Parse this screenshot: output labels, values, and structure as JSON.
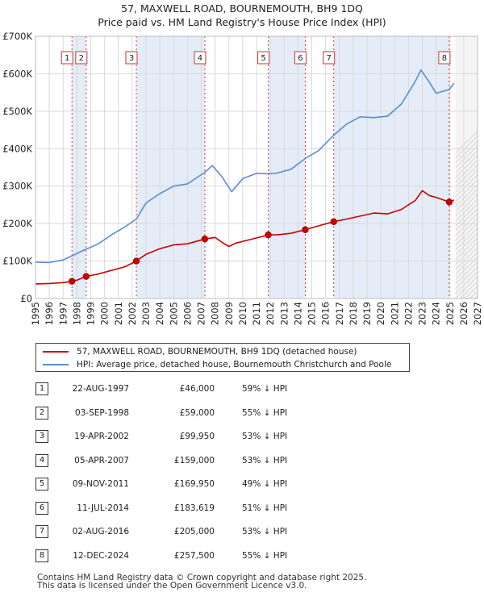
{
  "chart_data": {
    "type": "line",
    "title": "57, MAXWELL ROAD, BOURNEMOUTH, BH9 1DQ",
    "subtitle": "Price paid vs. HM Land Registry's House Price Index (HPI)",
    "xlabel": "",
    "ylabel": "",
    "xlim": [
      1995,
      2027
    ],
    "ylim": [
      0,
      700000
    ],
    "x_ticks": [
      "1995",
      "1996",
      "1997",
      "1998",
      "1999",
      "2000",
      "2001",
      "2002",
      "2003",
      "2004",
      "2005",
      "2006",
      "2007",
      "2008",
      "2009",
      "2010",
      "2011",
      "2012",
      "2013",
      "2014",
      "2015",
      "2016",
      "2017",
      "2018",
      "2019",
      "2020",
      "2021",
      "2022",
      "2023",
      "2024",
      "2025",
      "2026",
      "2027"
    ],
    "y_ticks": [
      {
        "value": 0,
        "label": "£0"
      },
      {
        "value": 100000,
        "label": "£100K"
      },
      {
        "value": 200000,
        "label": "£200K"
      },
      {
        "value": 300000,
        "label": "£300K"
      },
      {
        "value": 400000,
        "label": "£400K"
      },
      {
        "value": 500000,
        "label": "£500K"
      },
      {
        "value": 600000,
        "label": "£600K"
      },
      {
        "value": 700000,
        "label": "£700K"
      }
    ],
    "grid": true,
    "forecast_from": 2025.4,
    "series": [
      {
        "name": "57, MAXWELL ROAD, BOURNEMOUTH, BH9 1DQ (detached house)",
        "color": "#cc0000",
        "points": [
          [
            1995.0,
            39000
          ],
          [
            1996.0,
            40000
          ],
          [
            1997.0,
            42500
          ],
          [
            1997.64,
            46000
          ],
          [
            1998.0,
            49000
          ],
          [
            1998.67,
            59000
          ],
          [
            1999.5,
            65000
          ],
          [
            2000.5,
            75000
          ],
          [
            2001.5,
            85000
          ],
          [
            2002.3,
            99950
          ],
          [
            2003.0,
            118000
          ],
          [
            2004.0,
            133000
          ],
          [
            2005.0,
            143000
          ],
          [
            2006.0,
            146000
          ],
          [
            2007.26,
            159000
          ],
          [
            2008.0,
            163000
          ],
          [
            2008.5,
            150000
          ],
          [
            2009.0,
            139000
          ],
          [
            2009.5,
            148000
          ],
          [
            2010.5,
            157000
          ],
          [
            2011.85,
            169950
          ],
          [
            2012.5,
            170000
          ],
          [
            2013.5,
            174000
          ],
          [
            2014.53,
            183619
          ],
          [
            2015.5,
            194000
          ],
          [
            2016.59,
            205000
          ],
          [
            2017.5,
            212000
          ],
          [
            2018.5,
            220000
          ],
          [
            2019.5,
            228000
          ],
          [
            2020.5,
            226000
          ],
          [
            2021.5,
            238000
          ],
          [
            2022.5,
            262000
          ],
          [
            2023.0,
            288000
          ],
          [
            2023.5,
            275000
          ],
          [
            2024.0,
            270000
          ],
          [
            2024.95,
            257500
          ],
          [
            2025.3,
            263000
          ]
        ]
      },
      {
        "name": "HPI: Average price, detached house, Bournemouth Christchurch and Poole",
        "color": "#5b8ccf",
        "points": [
          [
            1995.0,
            97000
          ],
          [
            1996.0,
            96000
          ],
          [
            1997.0,
            103000
          ],
          [
            1997.64,
            114000
          ],
          [
            1998.5,
            129000
          ],
          [
            1999.5,
            145000
          ],
          [
            2000.5,
            170000
          ],
          [
            2001.5,
            192000
          ],
          [
            2002.3,
            212000
          ],
          [
            2003.0,
            255000
          ],
          [
            2004.0,
            280000
          ],
          [
            2005.0,
            300000
          ],
          [
            2006.0,
            306000
          ],
          [
            2007.26,
            337000
          ],
          [
            2007.8,
            355000
          ],
          [
            2008.5,
            325000
          ],
          [
            2009.2,
            285000
          ],
          [
            2010.0,
            320000
          ],
          [
            2011.0,
            334000
          ],
          [
            2011.85,
            333000
          ],
          [
            2012.5,
            335000
          ],
          [
            2013.5,
            345000
          ],
          [
            2014.53,
            374000
          ],
          [
            2015.5,
            395000
          ],
          [
            2016.59,
            436000
          ],
          [
            2017.5,
            465000
          ],
          [
            2018.5,
            485000
          ],
          [
            2019.5,
            483000
          ],
          [
            2020.5,
            487000
          ],
          [
            2021.5,
            520000
          ],
          [
            2022.5,
            580000
          ],
          [
            2022.9,
            610000
          ],
          [
            2023.5,
            578000
          ],
          [
            2024.0,
            548000
          ],
          [
            2024.95,
            558000
          ],
          [
            2025.3,
            575000
          ]
        ]
      }
    ],
    "sales": [
      {
        "label": "1",
        "x": 1997.64,
        "price": 46000
      },
      {
        "label": "2",
        "x": 1998.67,
        "price": 59000
      },
      {
        "label": "3",
        "x": 2002.3,
        "price": 99950
      },
      {
        "label": "4",
        "x": 2007.26,
        "price": 159000
      },
      {
        "label": "5",
        "x": 2011.85,
        "price": 169950
      },
      {
        "label": "6",
        "x": 2014.53,
        "price": 183619
      },
      {
        "label": "7",
        "x": 2016.59,
        "price": 205000
      },
      {
        "label": "8",
        "x": 2024.95,
        "price": 257500
      }
    ]
  },
  "legend": {
    "property": "57, MAXWELL ROAD, BOURNEMOUTH, BH9 1DQ (detached house)",
    "hpi": "HPI: Average price, detached house, Bournemouth Christchurch and Poole"
  },
  "table": [
    {
      "num": "1",
      "date": "22-AUG-1997",
      "price": "£46,000",
      "hpi": "59% ↓ HPI"
    },
    {
      "num": "2",
      "date": "03-SEP-1998",
      "price": "£59,000",
      "hpi": "55% ↓ HPI"
    },
    {
      "num": "3",
      "date": "19-APR-2002",
      "price": "£99,950",
      "hpi": "53% ↓ HPI"
    },
    {
      "num": "4",
      "date": "05-APR-2007",
      "price": "£159,000",
      "hpi": "53% ↓ HPI"
    },
    {
      "num": "5",
      "date": "09-NOV-2011",
      "price": "£169,950",
      "hpi": "49% ↓ HPI"
    },
    {
      "num": "6",
      "date": "11-JUL-2014",
      "price": "£183,619",
      "hpi": "51% ↓ HPI"
    },
    {
      "num": "7",
      "date": "02-AUG-2016",
      "price": "£205,000",
      "hpi": "53% ↓ HPI"
    },
    {
      "num": "8",
      "date": "12-DEC-2024",
      "price": "£257,500",
      "hpi": "55% ↓ HPI"
    }
  ],
  "footer": {
    "line1": "Contains HM Land Registry data © Crown copyright and database right 2025.",
    "line2": "This data is licensed under the Open Government Licence v3.0."
  }
}
